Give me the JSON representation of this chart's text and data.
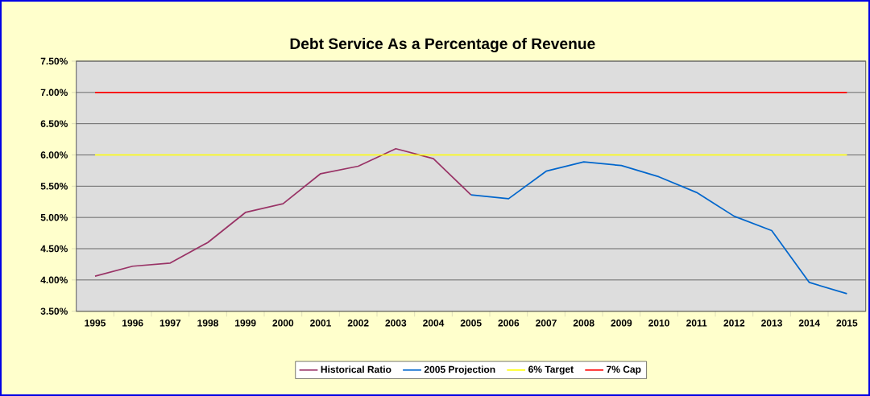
{
  "chart_data": {
    "type": "line",
    "title": "Debt Service As a Percentage of Revenue",
    "categories": [
      "1995",
      "1996",
      "1997",
      "1998",
      "1999",
      "2000",
      "2001",
      "2002",
      "2003",
      "2004",
      "2005",
      "2006",
      "2007",
      "2008",
      "2009",
      "2010",
      "2011",
      "2012",
      "2013",
      "2014",
      "2015"
    ],
    "series": [
      {
        "name": "Historical Ratio",
        "color": "#993366",
        "values": [
          4.06,
          4.22,
          4.27,
          4.6,
          5.08,
          5.22,
          5.7,
          5.82,
          6.1,
          5.94,
          5.36,
          null,
          null,
          null,
          null,
          null,
          null,
          null,
          null,
          null,
          null
        ]
      },
      {
        "name": "2005 Projection",
        "color": "#0066cc",
        "values": [
          null,
          null,
          null,
          null,
          null,
          null,
          null,
          null,
          null,
          null,
          5.36,
          5.3,
          5.74,
          5.89,
          5.83,
          5.65,
          5.4,
          5.02,
          4.79,
          3.96,
          3.78
        ]
      },
      {
        "name": "6% Target",
        "color": "#ffff00",
        "values": [
          6,
          6,
          6,
          6,
          6,
          6,
          6,
          6,
          6,
          6,
          6,
          6,
          6,
          6,
          6,
          6,
          6,
          6,
          6,
          6,
          6
        ]
      },
      {
        "name": "7% Cap",
        "color": "#ff0000",
        "values": [
          7,
          7,
          7,
          7,
          7,
          7,
          7,
          7,
          7,
          7,
          7,
          7,
          7,
          7,
          7,
          7,
          7,
          7,
          7,
          7,
          7
        ]
      }
    ],
    "ylim": [
      3.5,
      7.5
    ],
    "yticks": [
      {
        "value": 3.5,
        "label": "3.50%"
      },
      {
        "value": 4.0,
        "label": "4.00%"
      },
      {
        "value": 4.5,
        "label": "4.50%"
      },
      {
        "value": 5.0,
        "label": "5.00%"
      },
      {
        "value": 5.5,
        "label": "5.50%"
      },
      {
        "value": 6.0,
        "label": "6.00%"
      },
      {
        "value": 6.5,
        "label": "6.50%"
      },
      {
        "value": 7.0,
        "label": "7.00%"
      },
      {
        "value": 7.5,
        "label": "7.50%"
      }
    ],
    "grid": "y",
    "legend": "bottom",
    "marker": "none",
    "line_style": "solid"
  }
}
